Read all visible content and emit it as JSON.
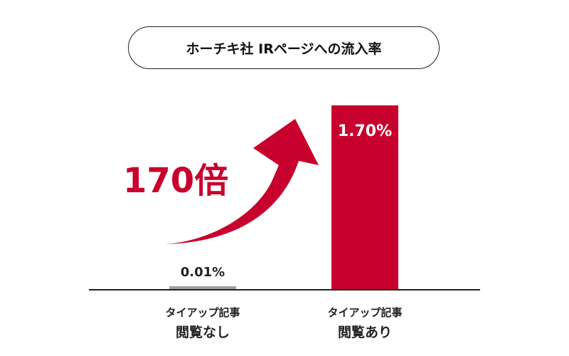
{
  "chart_data": {
    "type": "bar",
    "title": "ホーチキ社 IRページへの流入率",
    "categories": [
      {
        "line1": "タイアップ記事",
        "line2": "閲覧なし"
      },
      {
        "line1": "タイアップ記事",
        "line2": "閲覧あり"
      }
    ],
    "values": [
      0.01,
      1.7
    ],
    "value_labels": [
      "0.01%",
      "1.70%"
    ],
    "colors": [
      "#a0a0a0",
      "#c8002d"
    ],
    "annotation": "170倍",
    "annotation_color": "#c8002d",
    "ylim": [
      0,
      1.7
    ],
    "grid": false
  }
}
